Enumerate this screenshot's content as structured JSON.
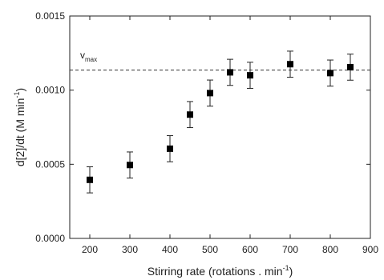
{
  "chart_data": {
    "type": "scatter",
    "xlabel": "Stirring rate (rotations . min",
    "xlabel_sup": "-1",
    "xlabel_close": ")",
    "ylabel": "d[2]/dt (M min",
    "ylabel_sup": "-1",
    "ylabel_close": ")",
    "xlim": [
      150,
      900
    ],
    "ylim": [
      0,
      0.0015
    ],
    "x_ticks": [
      200,
      300,
      400,
      500,
      600,
      700,
      800,
      900
    ],
    "y_ticks": [
      {
        "value": 0,
        "label": "0.0000"
      },
      {
        "value": 0.0005,
        "label": "0.0005"
      },
      {
        "value": 0.001,
        "label": "0.0010"
      },
      {
        "value": 0.0015,
        "label": "0.0015"
      }
    ],
    "x": [
      200,
      300,
      400,
      450,
      500,
      550,
      600,
      700,
      800,
      850
    ],
    "y": [
      0.000395,
      0.000495,
      0.000605,
      0.000835,
      0.00098,
      0.00112,
      0.0011,
      0.001175,
      0.001115,
      0.001155
    ],
    "error": 8.8e-05,
    "vmax": {
      "value": 0.001135,
      "label": "v",
      "sub": "max"
    },
    "grid": false,
    "marker_color": "#000000"
  }
}
